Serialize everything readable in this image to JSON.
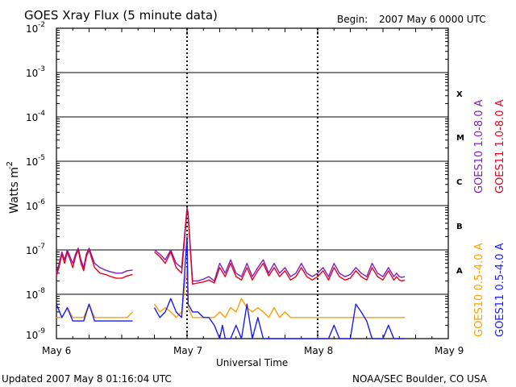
{
  "header": {
    "title": "GOES Xray Flux (5 minute data)",
    "begin_label": "Begin:",
    "begin_value": "2007 May 6 0000 UTC"
  },
  "footer": {
    "updated": "Updated 2007 May  8 01:16:04 UTC",
    "credit": "NOAA/SEC Boulder, CO USA"
  },
  "chart_data": {
    "type": "line",
    "title": "GOES Xray Flux (5 minute data)",
    "xlabel": "Universal Time",
    "ylabel": "Watts m",
    "ylabel_exponent": "-2",
    "y_scale": "log",
    "ylim": [
      1e-09,
      0.01
    ],
    "x_ticks": [
      "May 6",
      "May 7",
      "May 8",
      "May 9"
    ],
    "x_range_hours": [
      0,
      72
    ],
    "y_ticks": [
      {
        "base": "10",
        "exp": "-2",
        "value": 0.01
      },
      {
        "base": "10",
        "exp": "-3",
        "value": 0.001
      },
      {
        "base": "10",
        "exp": "-4",
        "value": 0.0001
      },
      {
        "base": "10",
        "exp": "-5",
        "value": 1e-05
      },
      {
        "base": "10",
        "exp": "-6",
        "value": 1e-06
      },
      {
        "base": "10",
        "exp": "-7",
        "value": 1e-07
      },
      {
        "base": "10",
        "exp": "-8",
        "value": 1e-08
      },
      {
        "base": "10",
        "exp": "-9",
        "value": 1e-09
      }
    ],
    "flare_classes": [
      "X",
      "M",
      "C",
      "B",
      "A"
    ],
    "grid": true,
    "legend": {
      "upper": [
        {
          "text": "GOES10 1.0-8.0 A",
          "color": "#7f1fbf"
        },
        {
          "text": "GOES11 1.0-8.0 A",
          "color": "#e8001c"
        }
      ],
      "lower": [
        {
          "text": "GOES10 0.5-4.0 A",
          "color": "#ff9f00"
        },
        {
          "text": "GOES11 0.5-4.0 A",
          "color": "#1a1aff"
        }
      ]
    },
    "series": [
      {
        "name": "GOES10 1.0-8.0 A",
        "color": "#7f1fbf",
        "x": [
          0,
          0.5,
          1,
          1.5,
          2,
          2.5,
          3,
          3.5,
          4,
          4.5,
          5,
          5.5,
          6,
          7,
          8,
          9,
          10,
          11,
          12,
          13,
          14,
          null,
          18,
          19,
          20,
          21,
          22,
          23,
          24,
          24.2,
          25,
          26,
          27,
          28,
          29,
          30,
          31,
          32,
          33,
          34,
          35,
          36,
          37,
          38,
          39,
          40,
          41,
          42,
          43,
          44,
          45,
          46,
          47,
          48,
          49,
          50,
          51,
          52,
          53,
          54,
          55,
          56,
          57,
          58,
          59,
          60,
          61,
          62,
          62.5,
          63,
          63.5,
          64
        ],
        "y": [
          3e-08,
          5e-08,
          9e-08,
          6e-08,
          1e-07,
          7e-08,
          5e-08,
          8e-08,
          1.1e-07,
          6e-08,
          4e-08,
          8e-08,
          1.1e-07,
          5e-08,
          4e-08,
          3.5e-08,
          3.2e-08,
          3e-08,
          3e-08,
          3.4e-08,
          3.5e-08,
          null,
          1e-07,
          8e-08,
          6e-08,
          1e-07,
          5e-08,
          4e-08,
          9e-07,
          7e-07,
          2e-08,
          2e-08,
          2.2e-08,
          2.5e-08,
          2e-08,
          5e-08,
          3e-08,
          6e-08,
          3e-08,
          2.5e-08,
          5e-08,
          2.5e-08,
          4e-08,
          6e-08,
          3e-08,
          5e-08,
          3e-08,
          4e-08,
          2.5e-08,
          3e-08,
          5e-08,
          3e-08,
          2.5e-08,
          3e-08,
          4e-08,
          2.5e-08,
          5e-08,
          3e-08,
          2.5e-08,
          2.8e-08,
          4e-08,
          3e-08,
          2.5e-08,
          5e-08,
          3e-08,
          2.5e-08,
          4e-08,
          2.5e-08,
          3e-08,
          2.5e-08,
          2.4e-08,
          2.5e-08
        ]
      },
      {
        "name": "GOES11 1.0-8.0 A",
        "color": "#e8001c",
        "x": [
          0,
          0.5,
          1,
          1.5,
          2,
          2.5,
          3,
          3.5,
          4,
          4.5,
          5,
          5.5,
          6,
          7,
          8,
          9,
          10,
          11,
          12,
          13,
          14,
          null,
          18,
          19,
          20,
          21,
          22,
          23,
          24,
          24.2,
          25,
          26,
          27,
          28,
          29,
          30,
          31,
          32,
          33,
          34,
          35,
          36,
          37,
          38,
          39,
          40,
          41,
          42,
          43,
          44,
          45,
          46,
          47,
          48,
          49,
          50,
          51,
          52,
          53,
          54,
          55,
          56,
          57,
          58,
          59,
          60,
          61,
          62,
          62.5,
          63,
          63.5,
          64
        ],
        "y": [
          2.6e-08,
          4.2e-08,
          8e-08,
          5e-08,
          9e-08,
          6e-08,
          4e-08,
          7e-08,
          1e-07,
          5e-08,
          3.4e-08,
          7e-08,
          1e-07,
          4e-08,
          3e-08,
          2.8e-08,
          2.5e-08,
          2.3e-08,
          2.3e-08,
          2.6e-08,
          2.8e-08,
          null,
          9e-08,
          7e-08,
          5e-08,
          9e-08,
          4e-08,
          3e-08,
          8e-07,
          6e-07,
          1.7e-08,
          1.8e-08,
          1.9e-08,
          2.1e-08,
          1.8e-08,
          4e-08,
          2.5e-08,
          5e-08,
          2.5e-08,
          2.1e-08,
          4e-08,
          2.1e-08,
          3.4e-08,
          5e-08,
          2.6e-08,
          4e-08,
          2.5e-08,
          3.4e-08,
          2.1e-08,
          2.5e-08,
          4e-08,
          2.5e-08,
          2.1e-08,
          2.5e-08,
          3.4e-08,
          2.1e-08,
          4e-08,
          2.5e-08,
          2.1e-08,
          2.3e-08,
          3.4e-08,
          2.5e-08,
          2.1e-08,
          4e-08,
          2.5e-08,
          2.1e-08,
          3.4e-08,
          2.1e-08,
          2.5e-08,
          2.1e-08,
          2e-08,
          2.1e-08
        ]
      },
      {
        "name": "GOES10 0.5-4.0 A",
        "color": "#ff9f00",
        "x": [
          0,
          1,
          2,
          3,
          4,
          5,
          6,
          7,
          8,
          9,
          10,
          11,
          12,
          13,
          14,
          null,
          18,
          19,
          20,
          21,
          22,
          23,
          24,
          24.2,
          25,
          27,
          29,
          30,
          31,
          32,
          33,
          34,
          35,
          36,
          37,
          38,
          39,
          40,
          41,
          42,
          43,
          44,
          45,
          46,
          48,
          50,
          52,
          54,
          56,
          58,
          60,
          62,
          64
        ],
        "y": [
          3e-09,
          3e-09,
          5e-09,
          3e-09,
          3e-09,
          3e-09,
          6e-09,
          3e-09,
          3e-09,
          3e-09,
          3e-09,
          3e-09,
          3e-09,
          3e-09,
          4e-09,
          null,
          6e-09,
          4e-09,
          5e-09,
          4e-09,
          3e-09,
          4e-09,
          4e-08,
          5e-09,
          3e-09,
          3e-09,
          3e-09,
          4e-09,
          3e-09,
          5e-09,
          4e-09,
          8e-09,
          5e-09,
          4e-09,
          5e-09,
          4e-09,
          3e-09,
          5e-09,
          3e-09,
          4e-09,
          3e-09,
          3e-09,
          3e-09,
          3e-09,
          3e-09,
          3e-09,
          3e-09,
          3e-09,
          3e-09,
          3e-09,
          3e-09,
          3e-09,
          3e-09
        ]
      },
      {
        "name": "GOES11 0.5-4.0 A",
        "color": "#1a1aff",
        "x": [
          0,
          1,
          2,
          3,
          4,
          5,
          6,
          7,
          8,
          9,
          10,
          11,
          12,
          13,
          14,
          null,
          18,
          19,
          20,
          21,
          22,
          23,
          24,
          24.2,
          25,
          26,
          27,
          28,
          29,
          30,
          30.5,
          31,
          32,
          33,
          34,
          35,
          36,
          37,
          38,
          39,
          40,
          41,
          42,
          43,
          44,
          45,
          46,
          47,
          48,
          49,
          50,
          51,
          52,
          53,
          54,
          55,
          56,
          57,
          58,
          59,
          60,
          61,
          62,
          63,
          64
        ],
        "y": [
          6e-09,
          3e-09,
          5e-09,
          2.5e-09,
          2.5e-09,
          2.5e-09,
          6e-09,
          2.5e-09,
          2.5e-09,
          2.5e-09,
          2.5e-09,
          2.5e-09,
          2.5e-09,
          2.5e-09,
          2.5e-09,
          null,
          5e-09,
          3e-09,
          4e-09,
          8e-09,
          4e-09,
          3e-09,
          2e-07,
          6e-09,
          4e-09,
          4e-09,
          3e-09,
          3e-09,
          2e-09,
          1e-09,
          2e-09,
          1e-09,
          1e-09,
          2e-09,
          1e-09,
          6e-09,
          1e-09,
          3e-09,
          1e-09,
          1e-09,
          1e-09,
          1e-09,
          1e-09,
          1e-09,
          1e-09,
          1e-09,
          1e-09,
          1e-09,
          1e-09,
          1e-09,
          1e-09,
          2e-09,
          1e-09,
          1e-09,
          1e-09,
          6e-09,
          4e-09,
          2.5e-09,
          1e-09,
          1e-09,
          1e-09,
          2e-09,
          1e-09,
          1e-09,
          1e-09
        ]
      }
    ]
  }
}
